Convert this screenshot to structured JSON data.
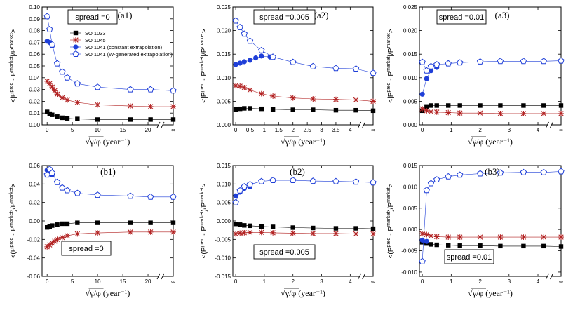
{
  "figure": {
    "xlabel_prefix": "√γ/φ",
    "xlabel_unit": "(year⁻¹)",
    "ylabel": "<|P^pred - P^market|/P^market>",
    "ylabel_signed": "<(P^pred - P^market)/P^market>",
    "infinity_tick": "∞"
  },
  "legend": [
    {
      "label": "SO 1033",
      "color": "#000000",
      "marker": "square-filled"
    },
    {
      "label": "SO 1045",
      "color": "#b22222",
      "marker": "star"
    },
    {
      "label": "SO 1041 (constant extrapolation)",
      "color": "#1f3fd8",
      "marker": "circle-filled"
    },
    {
      "label": "SO 1041 (W-generated extrapolation)",
      "color": "#1f3fd8",
      "marker": "pentagon-open"
    }
  ],
  "chart_data": [
    {
      "type": "scatter",
      "panel": "(a1)",
      "spread_label": "spread =0",
      "xlabel": "√γ/φ (year⁻¹)",
      "ylabel": "<|P^pred - P^market|/P^market>",
      "xlim": [
        -1,
        25
      ],
      "xticks": [
        0,
        5,
        10,
        15,
        20
      ],
      "x_inf": 25,
      "ylim": [
        0.0,
        0.1
      ],
      "yticks": [
        0.0,
        0.01,
        0.02,
        0.03,
        0.04,
        0.05,
        0.06,
        0.07,
        0.08,
        0.09,
        0.1
      ],
      "ytick_labels": [
        "0.00",
        "0.01",
        "0.02",
        "0.03",
        "0.04",
        "0.05",
        "0.06",
        "0.07",
        "0.08",
        "0.09",
        "0.10"
      ],
      "series": [
        {
          "name": "SO 1033",
          "x": [
            0,
            0.5,
            1,
            2,
            3,
            4,
            6,
            10,
            16.5,
            20.5,
            "inf"
          ],
          "values": [
            0.011,
            0.0095,
            0.0085,
            0.007,
            0.006,
            0.0055,
            0.005,
            0.0045,
            0.0045,
            0.0045,
            0.0045
          ]
        },
        {
          "name": "SO 1045",
          "x": [
            0,
            0.5,
            1,
            1.5,
            2,
            3,
            4,
            6,
            10,
            16.5,
            20.5,
            "inf"
          ],
          "values": [
            0.037,
            0.035,
            0.032,
            0.029,
            0.026,
            0.023,
            0.021,
            0.019,
            0.017,
            0.016,
            0.0155,
            0.0155
          ]
        },
        {
          "name": "SO 1041 (constant extrapolation)",
          "x": [
            0,
            0.5,
            1
          ],
          "values": [
            0.071,
            0.07,
            0.067
          ]
        },
        {
          "name": "SO 1041 (W-generated extrapolation)",
          "x": [
            0,
            0.5,
            1,
            2,
            3,
            4,
            6,
            10,
            16.5,
            20.5,
            "inf"
          ],
          "values": [
            0.092,
            0.081,
            0.068,
            0.052,
            0.045,
            0.04,
            0.035,
            0.032,
            0.03,
            0.03,
            0.029
          ]
        }
      ]
    },
    {
      "type": "scatter",
      "panel": "(a2)",
      "spread_label": "spread =0.005",
      "xlabel": "√γ/φ (year⁻¹)",
      "ylabel": "<|P^pred - P^market|/P^market>",
      "xlim": [
        -0.1,
        4.8
      ],
      "xticks": [
        0,
        0.5,
        1,
        1.5,
        2,
        2.5,
        3,
        3.5,
        4
      ],
      "x_inf": 4.8,
      "ylim": [
        0.0,
        0.025
      ],
      "yticks": [
        0.0,
        0.005,
        0.01,
        0.015,
        0.02,
        0.025
      ],
      "ytick_labels": [
        "0.000",
        "0.005",
        "0.010",
        "0.015",
        "0.020",
        "0.025"
      ],
      "series": [
        {
          "name": "SO 1033",
          "x": [
            0,
            0.15,
            0.3,
            0.5,
            0.9,
            1.3,
            2.0,
            2.7,
            3.5,
            4.2,
            "inf"
          ],
          "values": [
            0.0033,
            0.0034,
            0.0035,
            0.0035,
            0.0034,
            0.0033,
            0.0032,
            0.0032,
            0.0031,
            0.0031,
            0.003
          ]
        },
        {
          "name": "SO 1045",
          "x": [
            0,
            0.15,
            0.3,
            0.5,
            0.9,
            1.3,
            2.0,
            2.7,
            3.5,
            4.2,
            "inf"
          ],
          "values": [
            0.0083,
            0.0082,
            0.0079,
            0.0074,
            0.0066,
            0.0061,
            0.0057,
            0.0055,
            0.0054,
            0.0053,
            0.005
          ]
        },
        {
          "name": "SO 1041 (constant extrapolation)",
          "x": [
            0,
            0.15,
            0.3,
            0.5,
            0.7,
            0.9,
            1.2
          ],
          "values": [
            0.0128,
            0.0131,
            0.0134,
            0.0137,
            0.0142,
            0.0146,
            0.0144
          ]
        },
        {
          "name": "SO 1041 (W-generated extrapolation)",
          "x": [
            0,
            0.15,
            0.3,
            0.5,
            0.9,
            1.3,
            2.0,
            2.7,
            3.5,
            4.2,
            "inf"
          ],
          "values": [
            0.0221,
            0.0207,
            0.0193,
            0.0178,
            0.0158,
            0.0144,
            0.0133,
            0.0124,
            0.012,
            0.0119,
            0.011
          ]
        }
      ]
    },
    {
      "type": "scatter",
      "panel": "(a3)",
      "spread_label": "spread =0.01",
      "xlabel": "√γ/φ (year⁻¹)",
      "ylabel": "<|P^pred - P^market|/P^market>",
      "xlim": [
        -0.1,
        4.8
      ],
      "xticks": [
        0,
        1,
        2,
        3,
        4
      ],
      "x_inf": 4.8,
      "ylim": [
        0.0,
        0.025
      ],
      "yticks": [
        0.0,
        0.005,
        0.01,
        0.015,
        0.02,
        0.025
      ],
      "ytick_labels": [
        "0.000",
        "0.005",
        "0.010",
        "0.015",
        "0.020",
        "0.025"
      ],
      "series": [
        {
          "name": "SO 1033",
          "x": [
            0,
            0.15,
            0.3,
            0.5,
            0.9,
            1.3,
            2.0,
            2.7,
            3.5,
            4.2,
            "inf"
          ],
          "values": [
            0.003,
            0.0039,
            0.0041,
            0.0041,
            0.0041,
            0.0041,
            0.0041,
            0.0041,
            0.0041,
            0.0041,
            0.0041
          ]
        },
        {
          "name": "SO 1045",
          "x": [
            0,
            0.15,
            0.3,
            0.5,
            0.9,
            1.3,
            2.0,
            2.7,
            3.5,
            4.2,
            "inf"
          ],
          "values": [
            0.0034,
            0.003,
            0.0028,
            0.0027,
            0.0026,
            0.0025,
            0.0025,
            0.0024,
            0.0024,
            0.0024,
            0.0024
          ]
        },
        {
          "name": "SO 1041 (constant extrapolation)",
          "x": [
            0,
            0.15,
            0.3,
            0.5
          ],
          "values": [
            0.0065,
            0.0098,
            0.0115,
            0.0122
          ]
        },
        {
          "name": "SO 1041 (W-generated extrapolation)",
          "x": [
            0,
            0.15,
            0.3,
            0.5,
            0.9,
            1.3,
            2.0,
            2.7,
            3.5,
            4.2,
            "inf"
          ],
          "values": [
            0.0133,
            0.0115,
            0.0124,
            0.0128,
            0.013,
            0.0132,
            0.0134,
            0.0135,
            0.0135,
            0.0135,
            0.0136
          ]
        }
      ]
    },
    {
      "type": "scatter",
      "panel": "(b1)",
      "spread_label": "spread =0",
      "xlabel": "√γ/φ (year⁻¹)",
      "ylabel": "<(P^pred - P^market)/P^market>",
      "xlim": [
        -1,
        25
      ],
      "xticks": [
        0,
        5,
        10,
        15,
        20
      ],
      "x_inf": 25,
      "ylim": [
        -0.06,
        0.06
      ],
      "yticks": [
        -0.06,
        -0.04,
        -0.02,
        0.0,
        0.02,
        0.04,
        0.06
      ],
      "ytick_labels": [
        "-0.06",
        "-0.04",
        "-0.02",
        "0.00",
        "0.02",
        "0.04",
        "0.06"
      ],
      "series": [
        {
          "name": "SO 1033",
          "x": [
            0,
            0.5,
            1,
            2,
            3,
            4,
            6,
            10,
            16.5,
            20.5,
            "inf"
          ],
          "values": [
            -0.007,
            -0.006,
            -0.005,
            -0.004,
            -0.003,
            -0.003,
            -0.002,
            -0.002,
            -0.002,
            -0.002,
            -0.002
          ]
        },
        {
          "name": "SO 1045",
          "x": [
            0,
            0.5,
            1,
            1.5,
            2,
            3,
            4,
            6,
            10,
            16.5,
            20.5,
            "inf"
          ],
          "values": [
            -0.028,
            -0.026,
            -0.024,
            -0.022,
            -0.02,
            -0.018,
            -0.016,
            -0.014,
            -0.013,
            -0.012,
            -0.012,
            -0.012
          ]
        },
        {
          "name": "SO 1041 (constant extrapolation)",
          "x": [
            0,
            0.5,
            1
          ],
          "values": [
            0.055,
            0.053,
            0.05
          ]
        },
        {
          "name": "SO 1041 (W-generated extrapolation)",
          "x": [
            0,
            0.5,
            1,
            2,
            3,
            4,
            6,
            10,
            16.5,
            20.5,
            "inf"
          ],
          "values": [
            0.05,
            0.056,
            0.052,
            0.042,
            0.036,
            0.033,
            0.03,
            0.028,
            0.027,
            0.026,
            0.026
          ]
        }
      ]
    },
    {
      "type": "scatter",
      "panel": "(b2)",
      "spread_label": "spread =0.005",
      "xlabel": "√γ/φ (year⁻¹)",
      "ylabel": "<(P^pred - P^market)/P^market>",
      "xlim": [
        -0.1,
        4.8
      ],
      "xticks": [
        0,
        1,
        2,
        3,
        4
      ],
      "x_inf": 4.8,
      "ylim": [
        -0.015,
        0.015
      ],
      "yticks": [
        -0.015,
        -0.01,
        -0.005,
        0.0,
        0.005,
        0.01,
        0.015
      ],
      "ytick_labels": [
        "-0.015",
        "-0.010",
        "-0.005",
        "0.000",
        "0.005",
        "0.010",
        "0.015"
      ],
      "series": [
        {
          "name": "SO 1033",
          "x": [
            0,
            0.15,
            0.3,
            0.5,
            0.9,
            1.3,
            2.0,
            2.7,
            3.5,
            4.2,
            "inf"
          ],
          "values": [
            -0.0008,
            -0.001,
            -0.0012,
            -0.0013,
            -0.0015,
            -0.0016,
            -0.0018,
            -0.0019,
            -0.002,
            -0.002,
            -0.0021
          ]
        },
        {
          "name": "SO 1045",
          "x": [
            0,
            0.15,
            0.3,
            0.5,
            0.9,
            1.3,
            2.0,
            2.7,
            3.5,
            4.2,
            "inf"
          ],
          "values": [
            -0.0035,
            -0.0033,
            -0.0032,
            -0.0031,
            -0.0031,
            -0.0032,
            -0.0033,
            -0.0034,
            -0.0034,
            -0.0035,
            -0.0035
          ]
        },
        {
          "name": "SO 1041 (constant extrapolation)",
          "x": [
            0,
            0.15,
            0.3,
            0.5
          ],
          "values": [
            0.0068,
            0.0078,
            0.0088,
            0.0093
          ]
        },
        {
          "name": "SO 1041 (W-generated extrapolation)",
          "x": [
            0,
            0.15,
            0.3,
            0.5,
            0.9,
            1.3,
            2.0,
            2.7,
            3.5,
            4.2,
            "inf"
          ],
          "values": [
            0.005,
            0.0082,
            0.0093,
            0.0099,
            0.0107,
            0.011,
            0.011,
            0.0108,
            0.0107,
            0.0106,
            0.0104
          ]
        }
      ]
    },
    {
      "type": "scatter",
      "panel": "(b3)",
      "spread_label": "spread =0.01",
      "xlabel": "√γ/φ (year⁻¹)",
      "ylabel": "<(P^pred - P^market)/P^market>",
      "xlim": [
        -0.1,
        4.8
      ],
      "xticks": [
        0,
        1,
        2,
        3,
        4
      ],
      "x_inf": 4.8,
      "ylim": [
        -0.011,
        0.015
      ],
      "yticks": [
        -0.01,
        -0.005,
        0.0,
        0.005,
        0.01,
        0.015
      ],
      "ytick_labels": [
        "-0.010",
        "-0.005",
        "0.000",
        "0.005",
        "0.010",
        "0.015"
      ],
      "series": [
        {
          "name": "SO 1033",
          "x": [
            0,
            0.15,
            0.3,
            0.5,
            0.9,
            1.3,
            2.0,
            2.7,
            3.5,
            4.2,
            "inf"
          ],
          "values": [
            -0.003,
            -0.0033,
            -0.0035,
            -0.0036,
            -0.0037,
            -0.0038,
            -0.0038,
            -0.0039,
            -0.0039,
            -0.0039,
            -0.004
          ]
        },
        {
          "name": "SO 1045",
          "x": [
            0,
            0.15,
            0.3,
            0.5,
            0.9,
            1.3,
            2.0,
            2.7,
            3.5,
            4.2,
            "inf"
          ],
          "values": [
            -0.001,
            -0.0012,
            -0.0015,
            -0.0017,
            -0.0018,
            -0.0018,
            -0.0018,
            -0.0018,
            -0.0018,
            -0.0018,
            -0.0018
          ]
        },
        {
          "name": "SO 1041 (constant extrapolation)",
          "x": [
            0,
            0.15
          ],
          "values": [
            -0.0025,
            -0.0028
          ]
        },
        {
          "name": "SO 1041 (W-generated extrapolation)",
          "x": [
            0,
            0.15,
            0.3,
            0.5,
            0.9,
            1.3,
            2.0,
            2.7,
            3.5,
            4.2,
            "inf"
          ],
          "values": [
            -0.0075,
            0.0092,
            0.0108,
            0.0117,
            0.0124,
            0.0128,
            0.0131,
            0.0133,
            0.0134,
            0.0134,
            0.0136
          ]
        }
      ]
    }
  ]
}
